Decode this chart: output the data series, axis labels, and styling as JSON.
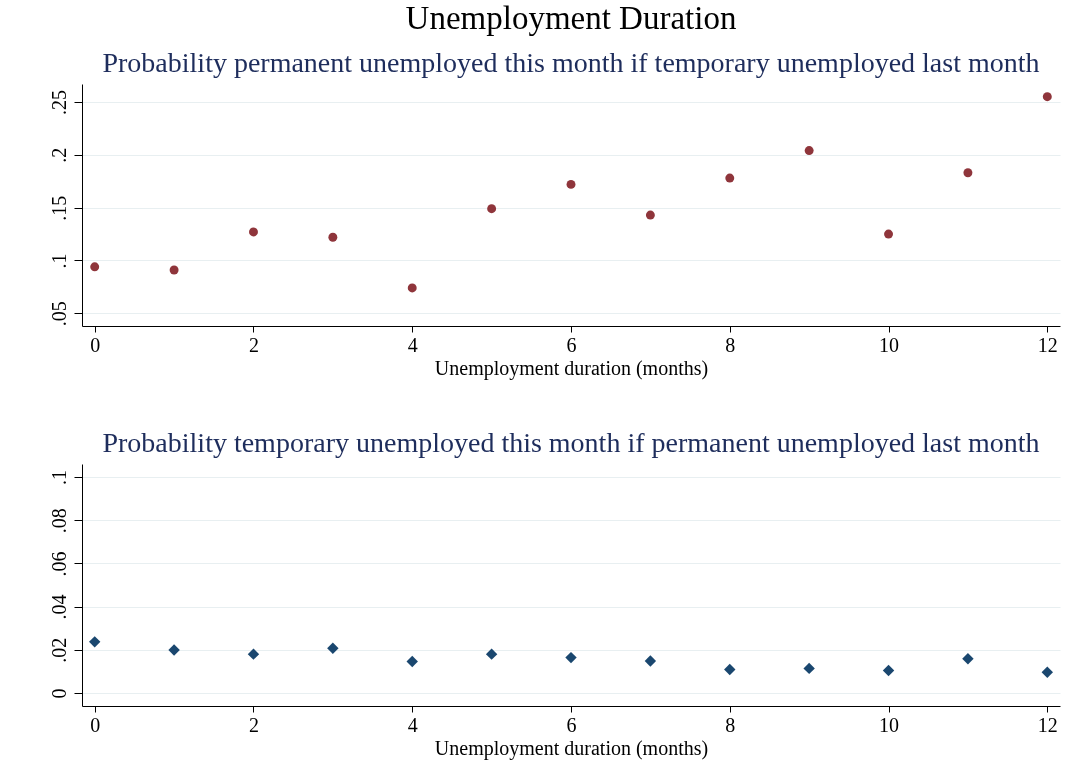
{
  "chart_data": [
    {
      "type": "scatter",
      "title": "Probability permanent unemployed this month if temporary unemployed last month",
      "xlabel": "Unemployment duration (months)",
      "annotations": [
        "Unemployment Duration"
      ],
      "x": [
        0,
        1,
        2,
        3,
        4,
        5,
        6,
        7,
        8,
        9,
        10,
        11,
        12
      ],
      "series": [
        {
          "color": "#8f353b",
          "values": [
            0.094,
            0.091,
            0.127,
            0.122,
            0.074,
            0.149,
            0.172,
            0.143,
            0.178,
            0.204,
            0.125,
            0.183,
            0.255
          ]
        }
      ],
      "xlim": [
        -0.16,
        12.16
      ],
      "xticks": [
        0,
        2,
        4,
        6,
        8,
        10,
        12
      ],
      "ylim": [
        0.038,
        0.267
      ],
      "yticks": [
        {
          "value": 0.05,
          "label": ".05"
        },
        {
          "value": 0.1,
          "label": ".1"
        },
        {
          "value": 0.15,
          "label": ".15"
        },
        {
          "value": 0.2,
          "label": ".2"
        },
        {
          "value": 0.25,
          "label": ".25"
        }
      ],
      "grid": "y",
      "marker": "circle"
    },
    {
      "type": "scatter",
      "title": "Probability temporary unemployed this month if permanent unemployed last month",
      "xlabel": "Unemployment duration (months)",
      "x": [
        0,
        1,
        2,
        3,
        4,
        5,
        6,
        7,
        8,
        9,
        10,
        11,
        12
      ],
      "series": [
        {
          "color": "#1a476f",
          "values": [
            0.0237,
            0.0199,
            0.018,
            0.0207,
            0.0146,
            0.018,
            0.0164,
            0.0148,
            0.0109,
            0.0114,
            0.0104,
            0.0159,
            0.0096
          ]
        }
      ],
      "xlim": [
        -0.16,
        12.16
      ],
      "xticks": [
        0,
        2,
        4,
        6,
        8,
        10,
        12
      ],
      "ylim": [
        -0.006,
        0.106
      ],
      "yticks": [
        0,
        {
          "value": 0.02,
          "label": ".02"
        },
        {
          "value": 0.04,
          "label": ".04"
        },
        {
          "value": 0.06,
          "label": ".06"
        },
        {
          "value": 0.08,
          "label": ".08"
        },
        {
          "value": 0.1,
          "label": ".1"
        }
      ],
      "grid": "y",
      "marker": "diamond"
    }
  ]
}
